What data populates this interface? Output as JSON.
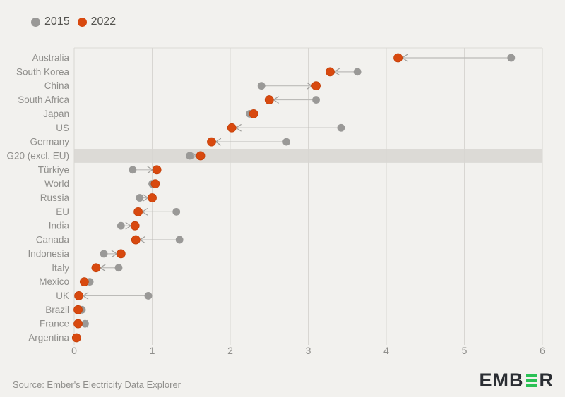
{
  "legend": {
    "items": [
      {
        "label": "2015",
        "color": "#9a9997"
      },
      {
        "label": "2022",
        "color": "#d8490f"
      }
    ]
  },
  "footer": {
    "source": "Source: Ember's Electricity Data Explorer"
  },
  "logo": {
    "text_before": "EMB",
    "text_after": "R",
    "bar_color": "#2bc155",
    "text_color": "#2b2e33"
  },
  "colors": {
    "background": "#f2f1ee",
    "gridline": "#d8d6d2",
    "plot_top_border": "#dcdad6",
    "highlight_band": "#dcdad6",
    "category_label": "#8f8e8b",
    "axis_tick_label": "#8f8e8b",
    "connector_line": "#bcbbb8",
    "arrowhead": "#a09f9c",
    "dot_2015": "#9a9997",
    "dot_2022": "#d8490f",
    "dot_2022_rim": "#c23f07"
  },
  "chart_data": {
    "type": "scatter",
    "variant": "dumbbell-dot-plot",
    "title": "",
    "xlabel": "",
    "ylabel": "",
    "xlim": [
      0,
      6
    ],
    "xticks": [
      0,
      1,
      2,
      3,
      4,
      5,
      6
    ],
    "grid": "vertical",
    "legend_position": "top-left",
    "arrow_direction": "from 2015 value to 2022 value",
    "highlighted_category": "G20 (excl. EU)",
    "categories": [
      "Australia",
      "South Korea",
      "China",
      "South Africa",
      "Japan",
      "US",
      "Germany",
      "G20 (excl. EU)",
      "Türkiye",
      "World",
      "Russia",
      "EU",
      "India",
      "Canada",
      "Indonesia",
      "Italy",
      "Mexico",
      "UK",
      "Brazil",
      "France",
      "Argentina"
    ],
    "series": [
      {
        "name": "2015",
        "color": "#9a9997",
        "values": [
          5.6,
          3.63,
          2.4,
          3.1,
          2.25,
          3.42,
          2.72,
          1.48,
          0.75,
          1.0,
          0.84,
          1.31,
          0.6,
          1.35,
          0.38,
          0.57,
          0.2,
          0.95,
          0.1,
          0.14,
          0.04
        ]
      },
      {
        "name": "2022",
        "color": "#d8490f",
        "values": [
          4.15,
          3.28,
          3.1,
          2.5,
          2.3,
          2.02,
          1.76,
          1.62,
          1.06,
          1.04,
          1.0,
          0.82,
          0.78,
          0.79,
          0.6,
          0.28,
          0.13,
          0.06,
          0.05,
          0.05,
          0.03
        ]
      }
    ]
  }
}
